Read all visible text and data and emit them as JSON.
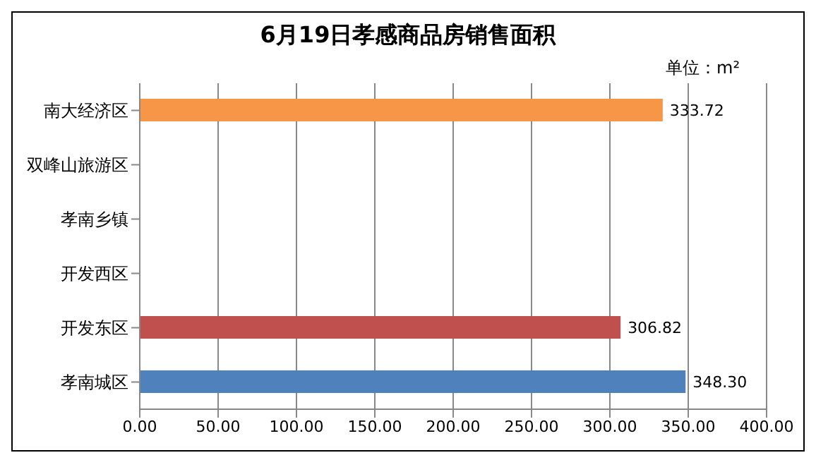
{
  "chart_data": {
    "type": "bar",
    "orientation": "horizontal",
    "title": "6月19日孝感商品房销售面积",
    "annotations": [
      "单位：m²"
    ],
    "categories": [
      "南大经济区",
      "双峰山旅游区",
      "孝南乡镇",
      "开发西区",
      "开发东区",
      "孝南城区"
    ],
    "values": [
      333.72,
      null,
      null,
      null,
      306.82,
      348.3
    ],
    "colors": [
      "#f79646",
      "#4f81bd",
      "#4f81bd",
      "#4f81bd",
      "#c0504d",
      "#4f81bd"
    ],
    "value_labels": [
      "333.72",
      null,
      null,
      null,
      "306.82",
      "348.30"
    ],
    "xlim": [
      0,
      400
    ],
    "xticks": [
      {
        "value": 0,
        "label": "0.00"
      },
      {
        "value": 50,
        "label": "50.00"
      },
      {
        "value": 100,
        "label": "100.00"
      },
      {
        "value": 150,
        "label": "150.00"
      },
      {
        "value": 200,
        "label": "200.00"
      },
      {
        "value": 250,
        "label": "250.00"
      },
      {
        "value": 300,
        "label": "300.00"
      },
      {
        "value": 350,
        "label": "350.00"
      },
      {
        "value": 400,
        "label": "400.00"
      }
    ],
    "grid": "x",
    "legend": false
  }
}
